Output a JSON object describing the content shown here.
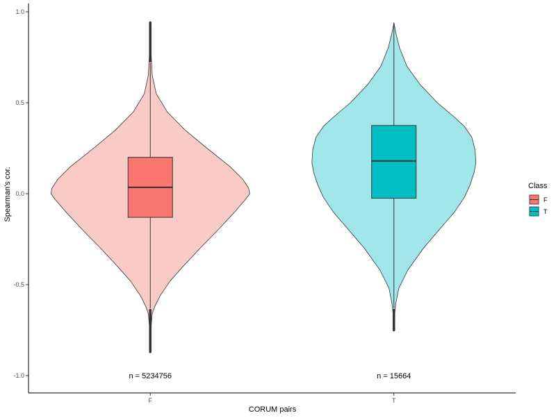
{
  "chart_data": {
    "type": "violin",
    "title": "",
    "xlabel": "CORUM pairs",
    "ylabel": "Spearman's cor.",
    "categories": [
      "F",
      "T"
    ],
    "ylim": [
      -1.05,
      1.0
    ],
    "yticks": [
      -1.0,
      -0.5,
      0.0,
      0.5,
      1.0
    ],
    "ytick_labels": [
      "-1.0",
      "-0.5",
      "0.0",
      "0.5",
      "1.0"
    ],
    "grid": false,
    "legend": {
      "title": "Class",
      "position": "right",
      "entries": [
        {
          "label": "F",
          "fill": "#F8766D"
        },
        {
          "label": "T",
          "fill": "#00BFC4"
        }
      ]
    },
    "series": [
      {
        "class": "F",
        "n_label": "n = 5234756",
        "violin_fill": "#F8CBC7",
        "box_fill": "#F8766D",
        "box": {
          "q1": -0.13,
          "median": 0.035,
          "q3": 0.2,
          "whisker_low": -0.63,
          "whisker_high": 0.72
        },
        "outlier_range_low": [
          -0.87,
          -0.64
        ],
        "outlier_range_high": [
          0.73,
          0.94
        ],
        "violin_profile": [
          [
            -0.87,
            0.0
          ],
          [
            -0.8,
            0.005
          ],
          [
            -0.72,
            0.01
          ],
          [
            -0.66,
            0.02
          ],
          [
            -0.62,
            0.045
          ],
          [
            -0.56,
            0.1
          ],
          [
            -0.48,
            0.2
          ],
          [
            -0.4,
            0.33
          ],
          [
            -0.3,
            0.5
          ],
          [
            -0.2,
            0.68
          ],
          [
            -0.1,
            0.85
          ],
          [
            -0.03,
            0.96
          ],
          [
            0.0,
            1.0
          ],
          [
            0.03,
            0.99
          ],
          [
            0.08,
            0.93
          ],
          [
            0.15,
            0.8
          ],
          [
            0.25,
            0.57
          ],
          [
            0.35,
            0.35
          ],
          [
            0.45,
            0.17
          ],
          [
            0.55,
            0.06
          ],
          [
            0.65,
            0.02
          ],
          [
            0.75,
            0.01
          ],
          [
            0.85,
            0.005
          ],
          [
            0.94,
            0.0
          ]
        ]
      },
      {
        "class": "T",
        "n_label": "n = 15664",
        "violin_fill": "#A1E6E8",
        "box_fill": "#00BFC4",
        "box": {
          "q1": -0.025,
          "median": 0.18,
          "q3": 0.375,
          "whisker_low": -0.63,
          "whisker_high": 0.94
        },
        "outlier_range_low": [
          -0.75,
          -0.64
        ],
        "outlier_range_high": [],
        "violin_profile": [
          [
            -0.75,
            0.0
          ],
          [
            -0.66,
            0.01
          ],
          [
            -0.6,
            0.025
          ],
          [
            -0.52,
            0.06
          ],
          [
            -0.42,
            0.17
          ],
          [
            -0.3,
            0.36
          ],
          [
            -0.2,
            0.55
          ],
          [
            -0.1,
            0.74
          ],
          [
            -0.02,
            0.86
          ],
          [
            0.05,
            0.93
          ],
          [
            0.12,
            0.98
          ],
          [
            0.17,
            1.0
          ],
          [
            0.24,
            0.99
          ],
          [
            0.31,
            0.95
          ],
          [
            0.37,
            0.86
          ],
          [
            0.42,
            0.74
          ],
          [
            0.5,
            0.53
          ],
          [
            0.6,
            0.32
          ],
          [
            0.7,
            0.16
          ],
          [
            0.8,
            0.07
          ],
          [
            0.88,
            0.025
          ],
          [
            0.94,
            0.0
          ]
        ]
      }
    ]
  }
}
